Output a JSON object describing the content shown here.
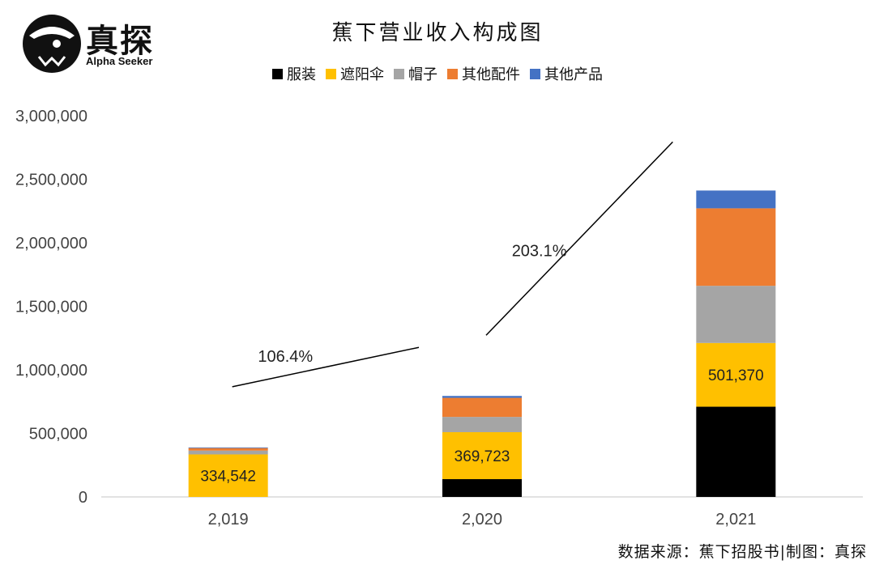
{
  "brand": {
    "name": "真探",
    "subtitle": "Alpha Seeker"
  },
  "source_note": "数据来源：蕉下招股书|制图：真探",
  "colors": {
    "服装": "#000000",
    "遮阳伞": "#FFC000",
    "帽子": "#A5A5A5",
    "其他配件": "#ED7D31",
    "其他产品": "#4472C4",
    "axis": "#d9d9d9",
    "growth_line": "#000000"
  },
  "chart_data": {
    "type": "bar",
    "stacked": true,
    "title": "蕉下营业收入构成图",
    "xlabel": "",
    "ylabel": "",
    "categories": [
      "2,019",
      "2,020",
      "2,021"
    ],
    "ylim": [
      0,
      3000000
    ],
    "yticks": [
      "0",
      "500,000",
      "1,000,000",
      "1,500,000",
      "2,000,000",
      "2,500,000",
      "3,000,000"
    ],
    "yticks_values": [
      0,
      500000,
      1000000,
      1500000,
      2000000,
      2500000,
      3000000
    ],
    "series": [
      {
        "name": "服装",
        "values": [
          0,
          140000,
          710000
        ]
      },
      {
        "name": "遮阳伞",
        "values": [
          334542,
          369723,
          501370
        ]
      },
      {
        "name": "帽子",
        "values": [
          30000,
          120000,
          450000
        ]
      },
      {
        "name": "其他配件",
        "values": [
          20000,
          150000,
          610000
        ]
      },
      {
        "name": "其他产品",
        "values": [
          5000,
          15000,
          140000
        ]
      }
    ],
    "data_labels": [
      {
        "category": 0,
        "series": "遮阳伞",
        "text": "334,542"
      },
      {
        "category": 1,
        "series": "遮阳伞",
        "text": "369,723"
      },
      {
        "category": 2,
        "series": "遮阳伞",
        "text": "501,370"
      }
    ],
    "annotations": [
      {
        "text": "106.4%",
        "from_category": 0,
        "to_category": 1
      },
      {
        "text": "203.1%",
        "from_category": 1,
        "to_category": 2
      }
    ],
    "legend_position": "top",
    "grid": false
  }
}
